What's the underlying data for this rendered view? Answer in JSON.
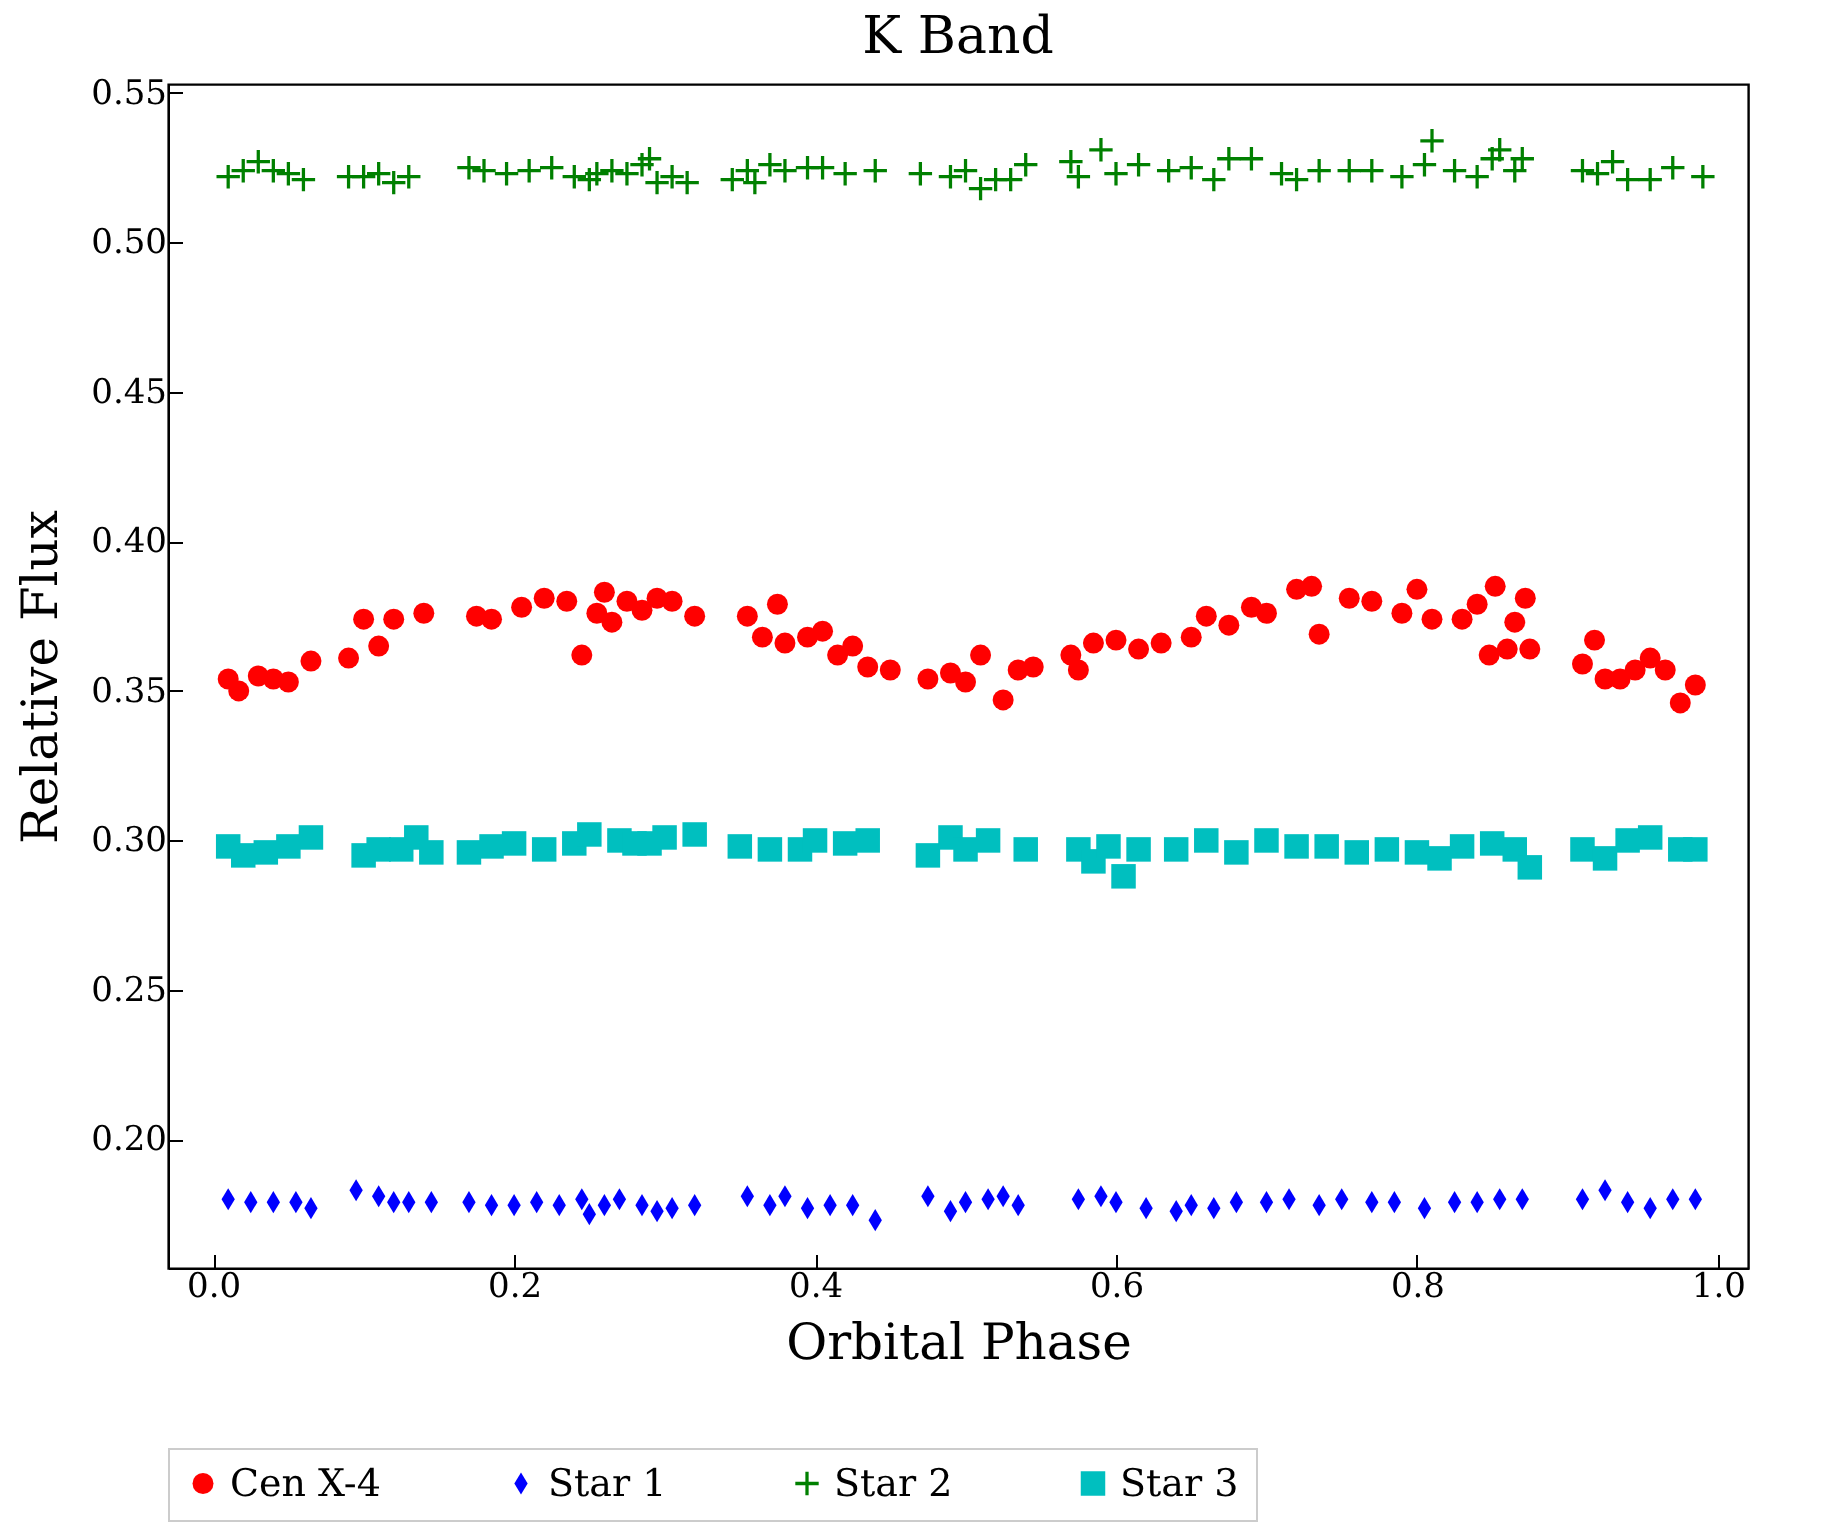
{
  "chart_data": {
    "type": "scatter",
    "title": "K Band",
    "xlabel": "Orbital Phase",
    "ylabel": "Relative Flux",
    "xlim": [
      -0.03,
      1.02
    ],
    "ylim": [
      0.157,
      0.553
    ],
    "xticks": [
      {
        "value": 0,
        "label": "0.0"
      },
      0.2,
      0.4,
      0.6,
      0.8,
      {
        "value": 1,
        "label": "1.0"
      }
    ],
    "yticks": [
      {
        "value": 0.2,
        "label": "0.20"
      },
      0.25,
      {
        "value": 0.3,
        "label": "0.30"
      },
      0.35,
      {
        "value": 0.4,
        "label": "0.40"
      },
      0.45,
      {
        "value": 0.5,
        "label": "0.50"
      },
      0.55
    ],
    "grid": false,
    "legend": "bottom",
    "series": [
      {
        "name": "Cen X-4",
        "color": "#ff0000",
        "marker": "circle",
        "x": [
          0.01,
          0.017,
          0.03,
          0.04,
          0.05,
          0.065,
          0.09,
          0.1,
          0.11,
          0.12,
          0.14,
          0.175,
          0.185,
          0.205,
          0.22,
          0.235,
          0.245,
          0.255,
          0.26,
          0.265,
          0.275,
          0.285,
          0.295,
          0.305,
          0.32,
          0.355,
          0.365,
          0.375,
          0.38,
          0.395,
          0.405,
          0.415,
          0.425,
          0.435,
          0.45,
          0.475,
          0.49,
          0.5,
          0.51,
          0.525,
          0.535,
          0.545,
          0.57,
          0.575,
          0.585,
          0.6,
          0.615,
          0.63,
          0.65,
          0.66,
          0.675,
          0.69,
          0.7,
          0.72,
          0.73,
          0.735,
          0.755,
          0.77,
          0.79,
          0.8,
          0.81,
          0.83,
          0.84,
          0.848,
          0.852,
          0.86,
          0.865,
          0.872,
          0.875,
          0.91,
          0.918,
          0.925,
          0.935,
          0.945,
          0.955,
          0.965,
          0.975,
          0.985
        ],
        "values": [
          0.354,
          0.35,
          0.355,
          0.354,
          0.353,
          0.36,
          0.361,
          0.374,
          0.365,
          0.374,
          0.376,
          0.375,
          0.374,
          0.378,
          0.381,
          0.38,
          0.362,
          0.376,
          0.383,
          0.373,
          0.38,
          0.377,
          0.381,
          0.38,
          0.375,
          0.375,
          0.368,
          0.379,
          0.366,
          0.368,
          0.37,
          0.362,
          0.365,
          0.358,
          0.357,
          0.354,
          0.356,
          0.353,
          0.362,
          0.347,
          0.357,
          0.358,
          0.362,
          0.357,
          0.366,
          0.367,
          0.364,
          0.366,
          0.368,
          0.375,
          0.372,
          0.378,
          0.376,
          0.384,
          0.385,
          0.369,
          0.381,
          0.38,
          0.376,
          0.384,
          0.374,
          0.374,
          0.379,
          0.362,
          0.385,
          0.364,
          0.373,
          0.381,
          0.364,
          0.359,
          0.367,
          0.354,
          0.354,
          0.357,
          0.361,
          0.357,
          0.346,
          0.352
        ]
      },
      {
        "name": "Star 1",
        "color": "#0000ff",
        "marker": "diamond",
        "x": [
          0.01,
          0.025,
          0.04,
          0.055,
          0.065,
          0.095,
          0.11,
          0.12,
          0.13,
          0.145,
          0.17,
          0.185,
          0.2,
          0.215,
          0.23,
          0.245,
          0.25,
          0.26,
          0.27,
          0.285,
          0.295,
          0.305,
          0.32,
          0.355,
          0.37,
          0.38,
          0.395,
          0.41,
          0.425,
          0.44,
          0.475,
          0.49,
          0.5,
          0.515,
          0.525,
          0.535,
          0.575,
          0.59,
          0.6,
          0.62,
          0.64,
          0.65,
          0.665,
          0.68,
          0.7,
          0.715,
          0.735,
          0.75,
          0.77,
          0.785,
          0.805,
          0.825,
          0.84,
          0.855,
          0.87,
          0.91,
          0.925,
          0.94,
          0.955,
          0.97,
          0.985
        ],
        "values": [
          0.18,
          0.179,
          0.179,
          0.179,
          0.177,
          0.183,
          0.181,
          0.179,
          0.179,
          0.179,
          0.179,
          0.178,
          0.178,
          0.179,
          0.178,
          0.18,
          0.175,
          0.178,
          0.18,
          0.178,
          0.176,
          0.177,
          0.178,
          0.181,
          0.178,
          0.181,
          0.177,
          0.178,
          0.178,
          0.173,
          0.181,
          0.176,
          0.179,
          0.18,
          0.181,
          0.178,
          0.18,
          0.181,
          0.179,
          0.177,
          0.176,
          0.178,
          0.177,
          0.179,
          0.179,
          0.18,
          0.178,
          0.18,
          0.179,
          0.179,
          0.177,
          0.179,
          0.179,
          0.18,
          0.18,
          0.18,
          0.183,
          0.179,
          0.177,
          0.18,
          0.18
        ]
      },
      {
        "name": "Star 2",
        "color": "#008000",
        "marker": "cross",
        "x": [
          0.01,
          0.02,
          0.03,
          0.04,
          0.05,
          0.06,
          0.09,
          0.1,
          0.11,
          0.12,
          0.13,
          0.17,
          0.18,
          0.195,
          0.21,
          0.225,
          0.24,
          0.25,
          0.255,
          0.265,
          0.275,
          0.285,
          0.29,
          0.295,
          0.305,
          0.315,
          0.345,
          0.355,
          0.36,
          0.37,
          0.38,
          0.395,
          0.405,
          0.42,
          0.44,
          0.47,
          0.49,
          0.5,
          0.51,
          0.52,
          0.53,
          0.54,
          0.57,
          0.575,
          0.59,
          0.6,
          0.615,
          0.635,
          0.65,
          0.665,
          0.675,
          0.69,
          0.71,
          0.72,
          0.735,
          0.755,
          0.77,
          0.79,
          0.805,
          0.81,
          0.825,
          0.84,
          0.85,
          0.855,
          0.865,
          0.87,
          0.91,
          0.92,
          0.93,
          0.94,
          0.955,
          0.97,
          0.99
        ],
        "values": [
          0.522,
          0.524,
          0.527,
          0.524,
          0.523,
          0.521,
          0.522,
          0.522,
          0.523,
          0.52,
          0.522,
          0.525,
          0.524,
          0.523,
          0.524,
          0.525,
          0.522,
          0.521,
          0.523,
          0.524,
          0.523,
          0.526,
          0.528,
          0.52,
          0.522,
          0.52,
          0.521,
          0.524,
          0.52,
          0.526,
          0.524,
          0.525,
          0.525,
          0.523,
          0.524,
          0.523,
          0.522,
          0.524,
          0.518,
          0.521,
          0.521,
          0.526,
          0.527,
          0.522,
          0.531,
          0.523,
          0.526,
          0.524,
          0.525,
          0.521,
          0.528,
          0.528,
          0.523,
          0.521,
          0.524,
          0.524,
          0.524,
          0.522,
          0.526,
          0.534,
          0.524,
          0.522,
          0.528,
          0.531,
          0.524,
          0.528,
          0.524,
          0.523,
          0.527,
          0.521,
          0.521,
          0.525,
          0.522
        ]
      },
      {
        "name": "Star 3",
        "color": "#00bfbf",
        "marker": "square",
        "x": [
          0.01,
          0.02,
          0.035,
          0.05,
          0.065,
          0.1,
          0.11,
          0.125,
          0.135,
          0.145,
          0.17,
          0.185,
          0.2,
          0.22,
          0.24,
          0.25,
          0.27,
          0.28,
          0.29,
          0.3,
          0.32,
          0.35,
          0.37,
          0.39,
          0.4,
          0.42,
          0.435,
          0.475,
          0.49,
          0.5,
          0.515,
          0.54,
          0.575,
          0.585,
          0.595,
          0.605,
          0.615,
          0.64,
          0.66,
          0.68,
          0.7,
          0.72,
          0.74,
          0.76,
          0.78,
          0.8,
          0.815,
          0.83,
          0.85,
          0.865,
          0.875,
          0.91,
          0.925,
          0.94,
          0.955,
          0.975,
          0.985
        ],
        "values": [
          0.298,
          0.295,
          0.296,
          0.298,
          0.301,
          0.295,
          0.297,
          0.297,
          0.301,
          0.296,
          0.296,
          0.298,
          0.299,
          0.297,
          0.299,
          0.302,
          0.3,
          0.299,
          0.299,
          0.301,
          0.302,
          0.298,
          0.297,
          0.297,
          0.3,
          0.299,
          0.3,
          0.295,
          0.301,
          0.297,
          0.3,
          0.297,
          0.297,
          0.293,
          0.298,
          0.288,
          0.297,
          0.297,
          0.3,
          0.296,
          0.3,
          0.298,
          0.298,
          0.296,
          0.297,
          0.296,
          0.294,
          0.298,
          0.299,
          0.297,
          0.291,
          0.297,
          0.294,
          0.3,
          0.301,
          0.297,
          0.297
        ]
      }
    ]
  }
}
